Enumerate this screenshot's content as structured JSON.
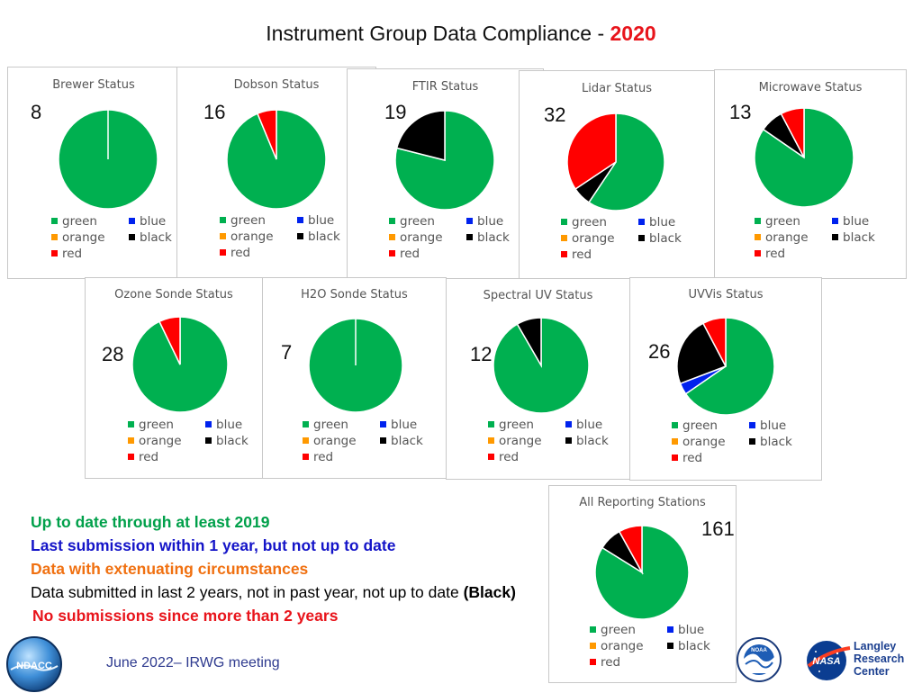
{
  "title": {
    "text": "Instrument Group Data Compliance - ",
    "year": "2020"
  },
  "colors": {
    "green": "#00b050",
    "blue": "#0022ee",
    "orange": "#ff9900",
    "black": "#000000",
    "red": "#ff0000"
  },
  "legend": {
    "green": "green",
    "blue": "blue",
    "orange": "orange",
    "black": "black",
    "red": "red"
  },
  "chart_data": [
    {
      "type": "pie",
      "title": "Brewer Status",
      "count": "8",
      "slices": [
        {
          "category": "green",
          "value": 8
        }
      ]
    },
    {
      "type": "pie",
      "title": "Dobson Status",
      "count": "16",
      "slices": [
        {
          "category": "green",
          "value": 15
        },
        {
          "category": "red",
          "value": 1
        }
      ]
    },
    {
      "type": "pie",
      "title": "FTIR Status",
      "count": "19",
      "slices": [
        {
          "category": "green",
          "value": 15
        },
        {
          "category": "black",
          "value": 4
        }
      ]
    },
    {
      "type": "pie",
      "title": "Lidar Status",
      "count": "32",
      "slices": [
        {
          "category": "green",
          "value": 19
        },
        {
          "category": "black",
          "value": 2
        },
        {
          "category": "red",
          "value": 11
        }
      ]
    },
    {
      "type": "pie",
      "title": "Microwave Status",
      "count": "13",
      "slices": [
        {
          "category": "green",
          "value": 11
        },
        {
          "category": "black",
          "value": 1
        },
        {
          "category": "red",
          "value": 1
        }
      ]
    },
    {
      "type": "pie",
      "title": "Ozone Sonde Status",
      "count": "28",
      "slices": [
        {
          "category": "green",
          "value": 26
        },
        {
          "category": "red",
          "value": 2
        }
      ]
    },
    {
      "type": "pie",
      "title": "H2O Sonde Status",
      "count": "7",
      "slices": [
        {
          "category": "green",
          "value": 7
        }
      ]
    },
    {
      "type": "pie",
      "title": "Spectral UV Status",
      "count": "12",
      "slices": [
        {
          "category": "green",
          "value": 11
        },
        {
          "category": "black",
          "value": 1
        }
      ]
    },
    {
      "type": "pie",
      "title": "UVVis Status",
      "count": "26",
      "slices": [
        {
          "category": "green",
          "value": 17
        },
        {
          "category": "blue",
          "value": 1
        },
        {
          "category": "black",
          "value": 6
        },
        {
          "category": "red",
          "value": 2
        }
      ]
    },
    {
      "type": "pie",
      "title": "All Reporting Stations",
      "count": "161",
      "slices": [
        {
          "category": "green",
          "value": 135
        },
        {
          "category": "black",
          "value": 13
        },
        {
          "category": "red",
          "value": 13
        }
      ]
    }
  ],
  "notes": [
    {
      "text": "Up to date through at least 2019",
      "color": "#00a04a",
      "bold": true
    },
    {
      "text": "Last submission within 1 year, but not up to date",
      "color": "#1414c8",
      "bold": true
    },
    {
      "text": "Data with extenuating circumstances",
      "color": "#f07010",
      "bold": true
    },
    {
      "text": "Data submitted in last 2 years, not in past year, not up to date ",
      "suffix": "(Black)",
      "color": "#000000",
      "bold": false
    },
    {
      "text": "No submissions since more than 2 years",
      "color": "#e8141b",
      "bold": true
    }
  ],
  "footer": "June 2022– IRWG meeting",
  "logos": {
    "ndacc": "NDACC",
    "noaa": "NOAA",
    "nasa": "NASA",
    "langley": [
      "Langley",
      "Research",
      "Center"
    ]
  }
}
